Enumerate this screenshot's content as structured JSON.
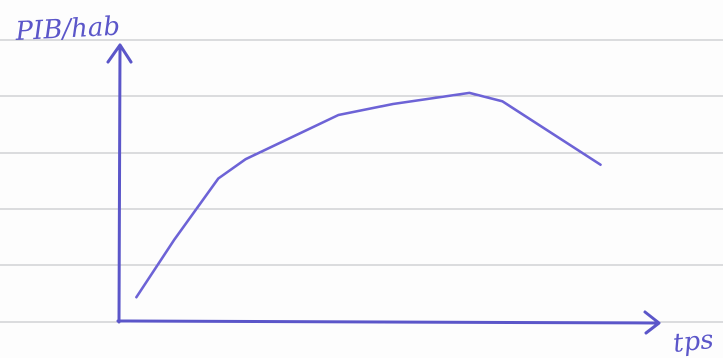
{
  "chart_data": {
    "type": "line",
    "ylabel": "PIB/hab",
    "xlabel": "tps",
    "grid": false,
    "xlim": [
      0,
      100
    ],
    "ylim": [
      0,
      100
    ],
    "x_ticks_labeled": false,
    "y_ticks_labeled": false,
    "series": [
      {
        "values_are_qualitative": true,
        "x": [
          3,
          10,
          18,
          23,
          40,
          50,
          64,
          70,
          88
        ],
        "y": [
          9,
          30,
          52,
          59,
          75,
          79,
          83,
          80,
          57
        ]
      }
    ]
  },
  "colors": {
    "ink": "#5b56c9",
    "ruled_lines": "#b9bcc0",
    "paper": "#fdfdfd"
  }
}
